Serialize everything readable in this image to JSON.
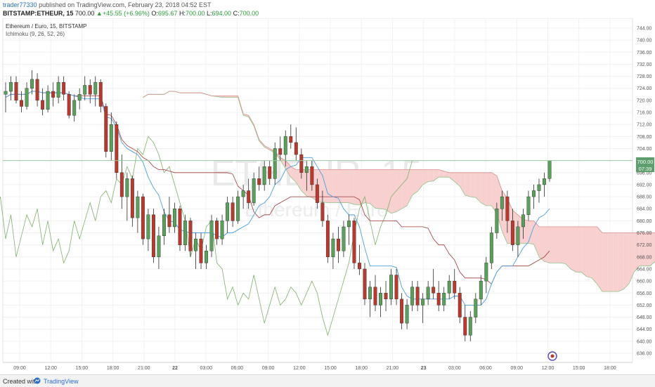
{
  "header": {
    "username": "trader77330",
    "published_text": "published on TradingView.com, February 23, 2018 04:52 EST",
    "symbol": "BITSTAMP:ETHEUR, 15",
    "last": "700.00",
    "change": "+45.55 (+6.96%)",
    "open_label": "O:",
    "open": "695.67",
    "high_label": "H:",
    "high": "700.00",
    "low_label": "L:",
    "low": "694.00",
    "close_label": "C:",
    "close": "700.00"
  },
  "legend": {
    "title": "Ethereum / Euro, 15, BITSTAMP",
    "indicator": "Ichimoku (9, 26, 52, 26)"
  },
  "watermark": {
    "symbol": "ETHEUR, 15",
    "name": "Ethereum / Euro"
  },
  "price_tags": {
    "last": "700.00",
    "timer": "07:39"
  },
  "footer": {
    "created_with": "Created with",
    "brand": "TradingView"
  },
  "colors": {
    "bull": "#5aa05a",
    "bear": "#b83a2f",
    "conversion": "#4a9fe0",
    "base": "#a13a3a",
    "lagging": "#7fb06a",
    "cloud_bull": "#c9e6c2",
    "cloud_bear": "#f8d0d0",
    "price_line": "#9cc9a0",
    "tag_green": "#5e9e6c"
  },
  "chart_data": {
    "type": "candlestick",
    "symbol": "BITSTAMP:ETHEUR",
    "interval": "15",
    "y_axis": {
      "min": 636,
      "max": 744,
      "ticks": [
        636,
        640,
        644,
        648,
        652,
        656,
        660,
        664,
        668,
        672,
        676,
        680,
        684,
        688,
        692,
        696,
        700,
        704,
        708,
        712,
        716,
        720,
        724,
        728,
        732,
        736,
        740,
        744
      ]
    },
    "x_axis": {
      "labels": [
        "09:00",
        "12:00",
        "15:00",
        "18:00",
        "21:00",
        "22",
        "03:00",
        "06:00",
        "09:00",
        "12:00",
        "15:00",
        "18:00",
        "21:00",
        "23",
        "03:00",
        "06:00",
        "09:00",
        "12:00",
        "15:00",
        "18:00"
      ]
    },
    "last_price": 700.0,
    "ohlc_approx": [
      [
        722,
        726,
        716,
        723
      ],
      [
        723,
        728,
        720,
        726
      ],
      [
        726,
        728,
        719,
        720
      ],
      [
        720,
        723,
        716,
        718
      ],
      [
        718,
        726,
        717,
        724
      ],
      [
        724,
        730,
        722,
        727
      ],
      [
        727,
        729,
        718,
        720
      ],
      [
        720,
        724,
        715,
        717
      ],
      [
        717,
        725,
        716,
        723
      ],
      [
        723,
        726,
        718,
        721
      ],
      [
        721,
        728,
        719,
        726
      ],
      [
        726,
        728,
        720,
        722
      ],
      [
        722,
        723,
        714,
        715
      ],
      [
        715,
        722,
        713,
        720
      ],
      [
        720,
        724,
        717,
        722
      ],
      [
        722,
        728,
        720,
        725
      ],
      [
        725,
        727,
        719,
        722
      ],
      [
        722,
        728,
        718,
        726
      ],
      [
        726,
        727,
        716,
        718
      ],
      [
        718,
        719,
        701,
        703
      ],
      [
        703,
        716,
        700,
        712
      ],
      [
        712,
        713,
        694,
        696
      ],
      [
        696,
        702,
        684,
        688
      ],
      [
        688,
        696,
        680,
        694
      ],
      [
        694,
        695,
        678,
        681
      ],
      [
        681,
        690,
        676,
        688
      ],
      [
        688,
        689,
        672,
        674
      ],
      [
        674,
        684,
        670,
        682
      ],
      [
        682,
        684,
        666,
        668
      ],
      [
        668,
        678,
        664,
        675
      ],
      [
        675,
        684,
        672,
        682
      ],
      [
        682,
        688,
        676,
        678
      ],
      [
        678,
        686,
        676,
        684
      ],
      [
        684,
        685,
        670,
        672
      ],
      [
        672,
        682,
        670,
        680
      ],
      [
        680,
        681,
        668,
        670
      ],
      [
        670,
        676,
        664,
        674
      ],
      [
        674,
        676,
        664,
        666
      ],
      [
        666,
        672,
        664,
        670
      ],
      [
        670,
        682,
        668,
        680
      ],
      [
        680,
        681,
        672,
        674
      ],
      [
        674,
        682,
        672,
        680
      ],
      [
        680,
        688,
        676,
        686
      ],
      [
        686,
        688,
        678,
        680
      ],
      [
        680,
        690,
        679,
        688
      ],
      [
        688,
        692,
        684,
        690
      ],
      [
        690,
        694,
        684,
        686
      ],
      [
        686,
        696,
        685,
        694
      ],
      [
        694,
        698,
        690,
        692
      ],
      [
        692,
        700,
        690,
        698
      ],
      [
        698,
        700,
        692,
        694
      ],
      [
        694,
        706,
        692,
        704
      ],
      [
        704,
        708,
        700,
        702
      ],
      [
        702,
        710,
        698,
        708
      ],
      [
        708,
        712,
        704,
        706
      ],
      [
        706,
        711,
        700,
        702
      ],
      [
        702,
        704,
        694,
        696
      ],
      [
        696,
        700,
        690,
        698
      ],
      [
        698,
        700,
        690,
        692
      ],
      [
        692,
        694,
        684,
        686
      ],
      [
        686,
        690,
        678,
        680
      ],
      [
        680,
        682,
        666,
        668
      ],
      [
        668,
        676,
        664,
        674
      ],
      [
        674,
        678,
        666,
        670
      ],
      [
        670,
        680,
        668,
        678
      ],
      [
        678,
        682,
        672,
        680
      ],
      [
        680,
        681,
        664,
        666
      ],
      [
        666,
        672,
        662,
        664
      ],
      [
        664,
        666,
        652,
        654
      ],
      [
        654,
        660,
        648,
        658
      ],
      [
        658,
        662,
        650,
        652
      ],
      [
        652,
        658,
        648,
        656
      ],
      [
        656,
        660,
        650,
        654
      ],
      [
        654,
        664,
        652,
        662
      ],
      [
        662,
        664,
        652,
        654
      ],
      [
        654,
        656,
        644,
        646
      ],
      [
        646,
        654,
        644,
        652
      ],
      [
        652,
        660,
        650,
        658
      ],
      [
        658,
        660,
        650,
        652
      ],
      [
        652,
        656,
        646,
        654
      ],
      [
        654,
        660,
        652,
        658
      ],
      [
        658,
        664,
        654,
        656
      ],
      [
        656,
        660,
        650,
        652
      ],
      [
        652,
        658,
        650,
        656
      ],
      [
        656,
        662,
        654,
        660
      ],
      [
        660,
        664,
        654,
        656
      ],
      [
        656,
        658,
        646,
        648
      ],
      [
        648,
        652,
        640,
        642
      ],
      [
        642,
        650,
        640,
        648
      ],
      [
        648,
        656,
        646,
        654
      ],
      [
        654,
        662,
        652,
        660
      ],
      [
        660,
        668,
        656,
        666
      ],
      [
        666,
        678,
        664,
        676
      ],
      [
        676,
        686,
        674,
        684
      ],
      [
        684,
        690,
        680,
        688
      ],
      [
        688,
        690,
        676,
        680
      ],
      [
        680,
        684,
        670,
        672
      ],
      [
        672,
        680,
        668,
        678
      ],
      [
        678,
        684,
        674,
        682
      ],
      [
        682,
        690,
        680,
        688
      ],
      [
        688,
        692,
        684,
        690
      ],
      [
        690,
        694,
        686,
        692
      ],
      [
        692,
        696,
        688,
        694
      ],
      [
        694,
        700,
        693,
        700
      ]
    ]
  }
}
